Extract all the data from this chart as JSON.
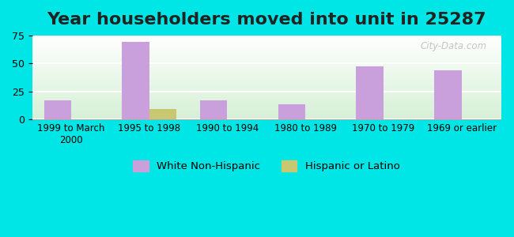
{
  "title": "Year householders moved into unit in 25287",
  "categories": [
    "1999 to March\n2000",
    "1995 to 1998",
    "1990 to 1994",
    "1980 to 1989",
    "1970 to 1979",
    "1969 or earlier"
  ],
  "white_values": [
    17,
    69,
    17,
    13,
    47,
    44
  ],
  "hispanic_values": [
    0,
    9,
    0,
    0,
    0,
    0
  ],
  "white_color": "#c9a0dc",
  "hispanic_color": "#c8c870",
  "bar_width": 0.35,
  "ylim": [
    0,
    75
  ],
  "yticks": [
    0,
    25,
    50,
    75
  ],
  "background_outer": "#00e5e5",
  "grid_color": "#ffffff",
  "title_fontsize": 16,
  "watermark_text": "City-Data.com",
  "legend_labels": [
    "White Non-Hispanic",
    "Hispanic or Latino"
  ]
}
